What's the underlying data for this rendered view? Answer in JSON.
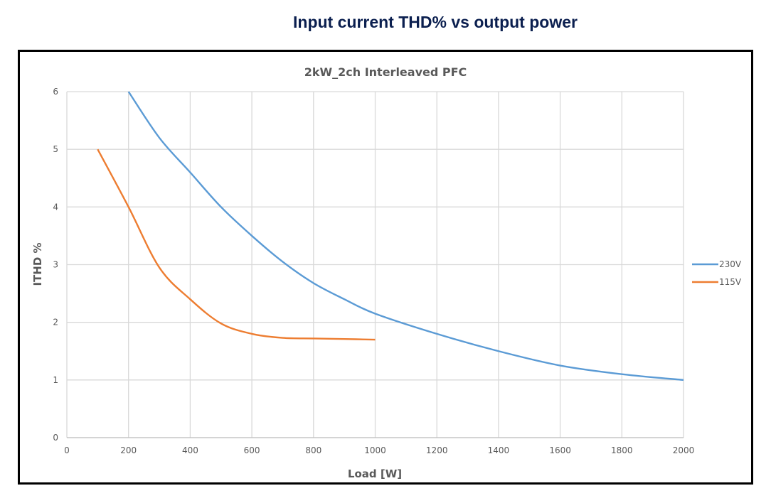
{
  "page_title": "Input current THD% vs output power",
  "chart_data": {
    "type": "line",
    "title": "2kW_2ch Interleaved PFC",
    "xlabel": "Load [W]",
    "ylabel": "ITHD %",
    "xlim": [
      0,
      2000
    ],
    "ylim": [
      0,
      6
    ],
    "xticks": [
      0,
      200,
      400,
      600,
      800,
      1000,
      1200,
      1400,
      1600,
      1800,
      2000
    ],
    "yticks": [
      0,
      1,
      2,
      3,
      4,
      5,
      6
    ],
    "xtick_labels": [
      "0",
      "200",
      "400",
      "600",
      "800",
      "1000",
      "1200",
      "1400",
      "1600",
      "1800",
      "2000"
    ],
    "ytick_labels": [
      "0",
      "1",
      "2",
      "3",
      "4",
      "5",
      "6"
    ],
    "grid": true,
    "legend_position": "right",
    "series": [
      {
        "name": "230V",
        "color": "#5b9bd5",
        "x": [
          200,
          300,
          400,
          500,
          600,
          700,
          800,
          900,
          1000,
          1200,
          1400,
          1600,
          1800,
          2000
        ],
        "y": [
          6.0,
          5.2,
          4.6,
          4.0,
          3.5,
          3.05,
          2.68,
          2.4,
          2.15,
          1.8,
          1.5,
          1.25,
          1.1,
          1.0
        ]
      },
      {
        "name": "115V",
        "color": "#ed7d31",
        "x": [
          100,
          200,
          300,
          400,
          500,
          600,
          700,
          800,
          900,
          1000
        ],
        "y": [
          5.0,
          4.0,
          2.95,
          2.4,
          1.98,
          1.8,
          1.73,
          1.72,
          1.71,
          1.7
        ]
      }
    ]
  }
}
